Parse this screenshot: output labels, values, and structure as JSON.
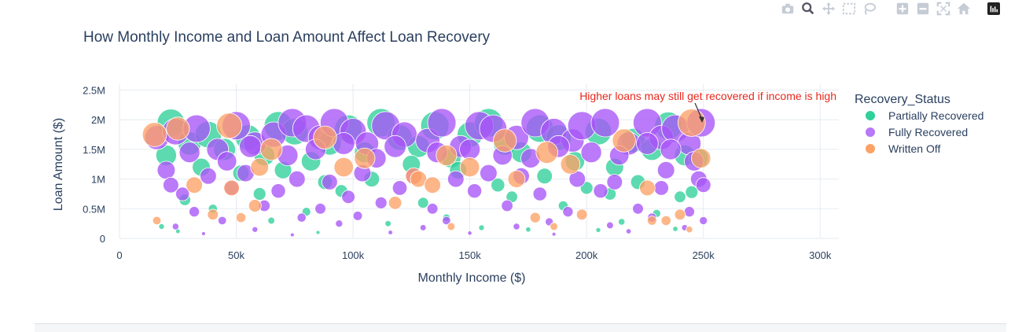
{
  "modebar": {
    "buttons": [
      "camera-icon",
      "zoom-icon",
      "pan-icon",
      "box-select-icon",
      "lasso-select-icon",
      "zoom-in-icon",
      "zoom-out-icon",
      "autoscale-icon",
      "reset-axes-icon",
      "plotly-logo-icon"
    ]
  },
  "colors": {
    "partially": "#2fd09a",
    "fully": "#a855f7",
    "written": "#fca266",
    "annotation": "#e8281e",
    "grid": "#e6ebf2",
    "text": "#2a3f5f"
  },
  "chart_data": {
    "type": "scatter",
    "title": "How Monthly Income and Loan Amount Affect Loan Recovery",
    "xlabel": "Monthly Income ($)",
    "ylabel": "Loan Amount ($)",
    "xlim": [
      0,
      308000
    ],
    "ylim": [
      0,
      2600000
    ],
    "x_ticks": [
      0,
      50000,
      100000,
      150000,
      200000,
      250000,
      300000
    ],
    "x_tick_labels": [
      "0",
      "50k",
      "100k",
      "150k",
      "200k",
      "250k",
      "300k"
    ],
    "y_ticks": [
      0,
      500000,
      1000000,
      1500000,
      2000000,
      2500000
    ],
    "y_tick_labels": [
      "0",
      "0.5M",
      "1M",
      "1.5M",
      "2M",
      "2.5M"
    ],
    "grid": true,
    "legend_title": "Recovery_Status",
    "legend_position": "right",
    "annotation": {
      "text": "Higher loans may still get recovered if income is high",
      "x": 250000,
      "y": 1950000
    },
    "series": [
      {
        "name": "Partially Recovered",
        "color_key": "partially",
        "x": [
          22000,
          30000,
          38000,
          45000,
          55000,
          62000,
          68000,
          75000,
          82000,
          90000,
          98000,
          105000,
          112000,
          120000,
          128000,
          135000,
          142000,
          150000,
          158000,
          165000,
          172000,
          180000,
          188000,
          195000,
          205000,
          212000,
          220000,
          228000,
          235000,
          242000,
          248000,
          20000,
          35000,
          52000,
          70000,
          88000,
          108000,
          125000,
          145000,
          162000,
          182000,
          200000,
          222000,
          240000,
          28000,
          60000,
          95000,
          130000,
          168000,
          210000,
          245000,
          40000,
          80000,
          140000,
          190000,
          230000,
          18000,
          65000,
          115000,
          175000,
          215000,
          25000,
          85000,
          155000,
          205000,
          238000
        ],
        "y": [
          1950000,
          1600000,
          1750000,
          1500000,
          1700000,
          1400000,
          1900000,
          1800000,
          1300000,
          1600000,
          1850000,
          1450000,
          1950000,
          1700000,
          1550000,
          1900000,
          1350000,
          1750000,
          1950000,
          1600000,
          1450000,
          1850000,
          1700000,
          1300000,
          1800000,
          1200000,
          1650000,
          1500000,
          1900000,
          1400000,
          1350000,
          1400000,
          1200000,
          1100000,
          1150000,
          950000,
          1000000,
          1250000,
          1150000,
          900000,
          1050000,
          850000,
          950000,
          700000,
          650000,
          750000,
          800000,
          600000,
          700000,
          750000,
          780000,
          500000,
          450000,
          350000,
          550000,
          420000,
          200000,
          300000,
          250000,
          150000,
          280000,
          120000,
          100000,
          180000,
          140000,
          160000
        ],
        "s": [
          1400000,
          1000000,
          1300000,
          900000,
          1200000,
          800000,
          1500000,
          1300000,
          700000,
          1000000,
          1400000,
          800000,
          1500000,
          1200000,
          900000,
          1500000,
          700000,
          1200000,
          1500000,
          1000000,
          800000,
          1400000,
          1200000,
          700000,
          1300000,
          600000,
          1100000,
          900000,
          1400000,
          800000,
          700000,
          800000,
          600000,
          500000,
          550000,
          400000,
          450000,
          600000,
          550000,
          350000,
          450000,
          300000,
          400000,
          250000,
          250000,
          300000,
          300000,
          220000,
          250000,
          280000,
          300000,
          150000,
          140000,
          100000,
          180000,
          120000,
          60000,
          90000,
          70000,
          50000,
          80000,
          40000,
          30000,
          60000,
          45000,
          50000
        ]
      },
      {
        "name": "Fully Recovered",
        "color_key": "fully",
        "x": [
          16000,
          24000,
          33000,
          42000,
          50000,
          58000,
          66000,
          74000,
          80000,
          86000,
          92000,
          100000,
          106000,
          114000,
          122000,
          132000,
          138000,
          146000,
          154000,
          160000,
          170000,
          178000,
          186000,
          194000,
          198000,
          208000,
          218000,
          226000,
          232000,
          238000,
          244000,
          249000,
          20000,
          30000,
          46000,
          56000,
          72000,
          84000,
          96000,
          110000,
          118000,
          136000,
          150000,
          164000,
          176000,
          188000,
          202000,
          214000,
          226000,
          236000,
          246000,
          22000,
          38000,
          54000,
          76000,
          90000,
          104000,
          126000,
          144000,
          158000,
          172000,
          196000,
          212000,
          234000,
          248000,
          27000,
          48000,
          68000,
          98000,
          120000,
          152000,
          180000,
          206000,
          232000,
          250000,
          32000,
          62000,
          86000,
          112000,
          134000,
          166000,
          192000,
          222000,
          244000,
          44000,
          78000,
          102000,
          140000,
          184000,
          228000,
          24000,
          58000,
          94000,
          130000,
          170000,
          210000,
          242000,
          36000,
          74000,
          116000,
          150000,
          186000,
          218000,
          250000
        ],
        "y": [
          1700000,
          1800000,
          1850000,
          1500000,
          1900000,
          1600000,
          1750000,
          1950000,
          1850000,
          1700000,
          1950000,
          1800000,
          1600000,
          1900000,
          1750000,
          1650000,
          1950000,
          1550000,
          1900000,
          1850000,
          1700000,
          1950000,
          1800000,
          1650000,
          1900000,
          1950000,
          1600000,
          1950000,
          1700000,
          1850000,
          1600000,
          1950000,
          1150000,
          1450000,
          1300000,
          1550000,
          1400000,
          1500000,
          1600000,
          1350000,
          1550000,
          1450000,
          1500000,
          1400000,
          1350000,
          1550000,
          1450000,
          1400000,
          1600000,
          1500000,
          1300000,
          900000,
          1050000,
          1100000,
          1000000,
          950000,
          1100000,
          1050000,
          1000000,
          1100000,
          1050000,
          1000000,
          950000,
          1150000,
          1000000,
          750000,
          850000,
          800000,
          700000,
          850000,
          800000,
          750000,
          800000,
          850000,
          900000,
          450000,
          550000,
          500000,
          600000,
          500000,
          550000,
          450000,
          500000,
          450000,
          300000,
          350000,
          380000,
          300000,
          280000,
          350000,
          200000,
          150000,
          250000,
          180000,
          200000,
          220000,
          180000,
          80000,
          60000,
          100000,
          90000,
          70000,
          120000,
          300000
        ],
        "s": [
          1100000,
          1300000,
          1400000,
          900000,
          1500000,
          1000000,
          1200000,
          1500000,
          1400000,
          1100000,
          1500000,
          1300000,
          1000000,
          1500000,
          1200000,
          1100000,
          1500000,
          900000,
          1500000,
          1400000,
          1100000,
          1500000,
          1300000,
          1000000,
          1500000,
          1500000,
          1000000,
          1500000,
          1100000,
          1400000,
          1000000,
          1500000,
          600000,
          800000,
          700000,
          900000,
          800000,
          800000,
          900000,
          700000,
          900000,
          800000,
          800000,
          700000,
          700000,
          900000,
          800000,
          700000,
          900000,
          800000,
          700000,
          450000,
          500000,
          550000,
          500000,
          450000,
          550000,
          500000,
          500000,
          550000,
          500000,
          500000,
          450000,
          550000,
          500000,
          350000,
          400000,
          380000,
          330000,
          400000,
          380000,
          350000,
          380000,
          400000,
          420000,
          200000,
          250000,
          220000,
          260000,
          220000,
          250000,
          200000,
          220000,
          200000,
          130000,
          150000,
          160000,
          130000,
          120000,
          150000,
          80000,
          60000,
          100000,
          70000,
          80000,
          90000,
          70000,
          30000,
          25000,
          40000,
          35000,
          30000,
          50000,
          120000
        ]
      },
      {
        "name": "Written Off",
        "color_key": "written",
        "x": [
          15000,
          25000,
          47000,
          60000,
          65000,
          88000,
          96000,
          105000,
          126000,
          128000,
          140000,
          150000,
          165000,
          183000,
          193000,
          216000,
          226000,
          245000,
          249000,
          32000,
          48000,
          58000,
          134000,
          170000,
          240000,
          40000,
          118000,
          178000,
          198000,
          234000,
          16000,
          52000,
          142000,
          186000,
          228000,
          244000
        ],
        "y": [
          1750000,
          1850000,
          1900000,
          1200000,
          1500000,
          1700000,
          1200000,
          1350000,
          1050000,
          1000000,
          1400000,
          1200000,
          1650000,
          1450000,
          1250000,
          1650000,
          850000,
          1950000,
          1350000,
          900000,
          850000,
          550000,
          900000,
          1000000,
          400000,
          400000,
          600000,
          350000,
          400000,
          300000,
          300000,
          350000,
          200000,
          200000,
          300000,
          150000
        ],
        "s": [
          1100000,
          1000000,
          1200000,
          600000,
          900000,
          1000000,
          700000,
          800000,
          500000,
          500000,
          800000,
          700000,
          1000000,
          900000,
          700000,
          1000000,
          450000,
          1400000,
          700000,
          500000,
          450000,
          300000,
          500000,
          550000,
          220000,
          220000,
          320000,
          200000,
          220000,
          180000,
          130000,
          180000,
          110000,
          110000,
          160000,
          80000
        ]
      }
    ]
  }
}
